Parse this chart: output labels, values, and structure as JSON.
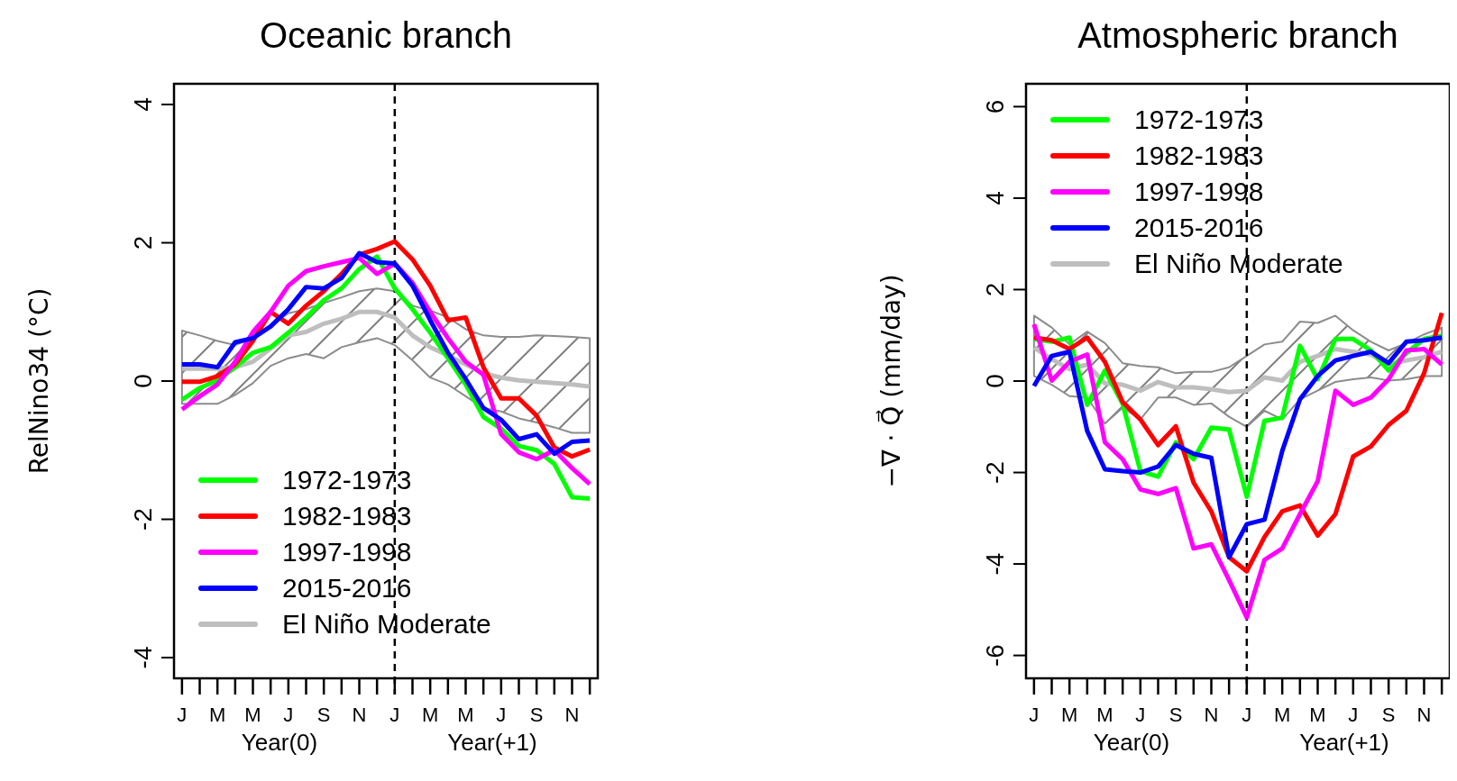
{
  "chart_data": [
    {
      "type": "line",
      "title": "Oceanic branch",
      "ylabel": "RelNino34 (°C)",
      "categories": [
        "J",
        null,
        "M",
        null,
        "M",
        null,
        "J",
        null,
        "S",
        null,
        "N",
        null,
        "J",
        null,
        "M",
        null,
        "M",
        null,
        "J",
        null,
        "S",
        null,
        "N",
        null
      ],
      "ylim": [
        -4.3,
        4.3
      ],
      "yticks": [
        -4,
        -2,
        0,
        2,
        4
      ],
      "legend": "bottom left",
      "line_style": "solid",
      "marker": "none",
      "annotations": [
        "Year(0)",
        "Year(+1)"
      ],
      "series": [
        {
          "name": "1972-1973",
          "color": "#00ff00",
          "values": [
            -0.27,
            -0.1,
            0.01,
            0.2,
            0.41,
            0.49,
            0.7,
            0.92,
            1.17,
            1.34,
            1.62,
            1.8,
            1.34,
            1.04,
            0.7,
            0.33,
            -0.05,
            -0.52,
            -0.69,
            -0.94,
            -1.0,
            -1.2,
            -1.68,
            -1.7
          ]
        },
        {
          "name": "1982-1983",
          "color": "#ff0000",
          "values": [
            -0.01,
            -0.01,
            0.07,
            0.24,
            0.58,
            1.0,
            0.83,
            1.09,
            1.3,
            1.55,
            1.83,
            1.91,
            2.02,
            1.76,
            1.38,
            0.88,
            0.92,
            0.2,
            -0.25,
            -0.25,
            -0.5,
            -0.96,
            -1.09,
            -0.99
          ]
        },
        {
          "name": "1997-1998",
          "color": "#ff00ff",
          "values": [
            -0.41,
            -0.22,
            -0.05,
            0.28,
            0.71,
            1.0,
            1.38,
            1.59,
            1.66,
            1.72,
            1.78,
            1.55,
            1.7,
            1.42,
            1.0,
            0.62,
            0.28,
            0.09,
            -0.77,
            -1.03,
            -1.13,
            -1.0,
            -1.26,
            -1.49
          ]
        },
        {
          "name": "2015-2016",
          "color": "#0000ff",
          "values": [
            0.24,
            0.24,
            0.2,
            0.56,
            0.62,
            0.79,
            1.04,
            1.36,
            1.34,
            1.49,
            1.85,
            1.72,
            1.7,
            1.38,
            0.88,
            0.41,
            0.03,
            -0.39,
            -0.56,
            -0.84,
            -0.77,
            -1.05,
            -0.88,
            -0.86
          ]
        },
        {
          "name": "El Niño Moderate",
          "color": "#bebebe",
          "values": [
            0.18,
            0.18,
            0.18,
            0.2,
            0.28,
            0.47,
            0.66,
            0.71,
            0.83,
            0.9,
            1.0,
            1.0,
            0.92,
            0.66,
            0.49,
            0.37,
            0.24,
            0.11,
            0.05,
            0.01,
            -0.01,
            -0.03,
            -0.05,
            -0.08
          ],
          "lower": [
            -0.33,
            -0.33,
            -0.33,
            -0.2,
            -0.03,
            0.22,
            0.33,
            0.39,
            0.33,
            0.49,
            0.56,
            0.62,
            0.52,
            0.3,
            0.05,
            -0.05,
            -0.22,
            -0.39,
            -0.44,
            -0.54,
            -0.6,
            -0.67,
            -0.75,
            -0.75
          ],
          "upper": [
            0.73,
            0.66,
            0.58,
            0.52,
            0.62,
            0.79,
            0.98,
            1.04,
            1.13,
            1.21,
            1.3,
            1.34,
            1.3,
            1.09,
            1.02,
            0.92,
            0.75,
            0.66,
            0.64,
            0.64,
            0.66,
            0.65,
            0.64,
            0.62
          ]
        }
      ]
    },
    {
      "type": "line",
      "title": "Atmospheric branch",
      "ylabel": "−∇ · Q⃗  (mm/day)",
      "categories": [
        "J",
        null,
        "M",
        null,
        "M",
        null,
        "J",
        null,
        "S",
        null,
        "N",
        null,
        "J",
        null,
        "M",
        null,
        "M",
        null,
        "J",
        null,
        "S",
        null,
        "N",
        null
      ],
      "ylim": [
        -6.5,
        6.5
      ],
      "yticks": [
        -6,
        -4,
        -2,
        0,
        2,
        4,
        6
      ],
      "legend": "top left",
      "line_style": "solid",
      "marker": "none",
      "annotations": [
        "Year(0)",
        "Year(+1)"
      ],
      "series": [
        {
          "name": "1972-1973",
          "color": "#00ff00",
          "values": [
            0.92,
            0.86,
            0.95,
            -0.52,
            0.23,
            -0.5,
            -1.97,
            -2.09,
            -1.34,
            -1.71,
            -1.02,
            -1.06,
            -2.53,
            -0.87,
            -0.8,
            0.77,
            0.04,
            0.92,
            0.92,
            0.67,
            0.23,
            0.61,
            0.92,
            0.99
          ]
        },
        {
          "name": "1982-1983",
          "color": "#ff0000",
          "values": [
            0.95,
            0.89,
            0.7,
            0.95,
            0.42,
            -0.46,
            -0.84,
            -1.4,
            -0.99,
            -2.22,
            -2.85,
            -3.85,
            -4.16,
            -3.41,
            -2.85,
            -2.72,
            -3.38,
            -2.91,
            -1.65,
            -1.43,
            -0.96,
            -0.65,
            0.17,
            1.49
          ]
        },
        {
          "name": "1997-1998",
          "color": "#ff00ff",
          "values": [
            1.24,
            0.01,
            0.42,
            0.58,
            -1.34,
            -1.71,
            -2.37,
            -2.47,
            -2.34,
            -3.66,
            -3.57,
            -4.35,
            -5.17,
            -3.91,
            -3.66,
            -2.91,
            -2.19,
            -0.21,
            -0.52,
            -0.36,
            0.04,
            0.67,
            0.7,
            0.36
          ]
        },
        {
          "name": "2015-2016",
          "color": "#0000ff",
          "values": [
            -0.11,
            0.55,
            0.64,
            -1.09,
            -1.93,
            -1.97,
            -2.0,
            -1.87,
            -1.4,
            -1.59,
            -1.68,
            -3.85,
            -3.13,
            -3.03,
            -1.53,
            -0.4,
            0.11,
            0.45,
            0.55,
            0.64,
            0.39,
            0.86,
            0.89,
            0.95
          ]
        },
        {
          "name": "El Niño Moderate",
          "color": "#bebebe",
          "values": [
            0.73,
            0.48,
            0.26,
            0.36,
            -0.05,
            -0.08,
            -0.21,
            -0.02,
            -0.14,
            -0.14,
            -0.18,
            -0.24,
            -0.21,
            0.08,
            0.01,
            0.42,
            0.55,
            0.7,
            0.64,
            0.58,
            0.36,
            0.45,
            0.52,
            0.64
          ],
          "lower": [
            0.11,
            -0.08,
            -0.33,
            -0.36,
            -0.93,
            -0.58,
            -0.84,
            -0.36,
            -0.36,
            -0.52,
            -0.49,
            -0.78,
            -1.0,
            -0.65,
            -0.84,
            -0.4,
            -0.21,
            -0.02,
            0.04,
            0.08,
            0.01,
            0.04,
            0.11,
            0.11
          ],
          "upper": [
            1.43,
            1.17,
            0.8,
            1.08,
            0.83,
            0.39,
            0.33,
            0.3,
            0.17,
            0.2,
            0.2,
            0.3,
            0.55,
            0.8,
            0.86,
            1.3,
            1.27,
            1.43,
            1.11,
            0.86,
            0.67,
            0.83,
            1.02,
            1.17
          ]
        }
      ]
    }
  ]
}
